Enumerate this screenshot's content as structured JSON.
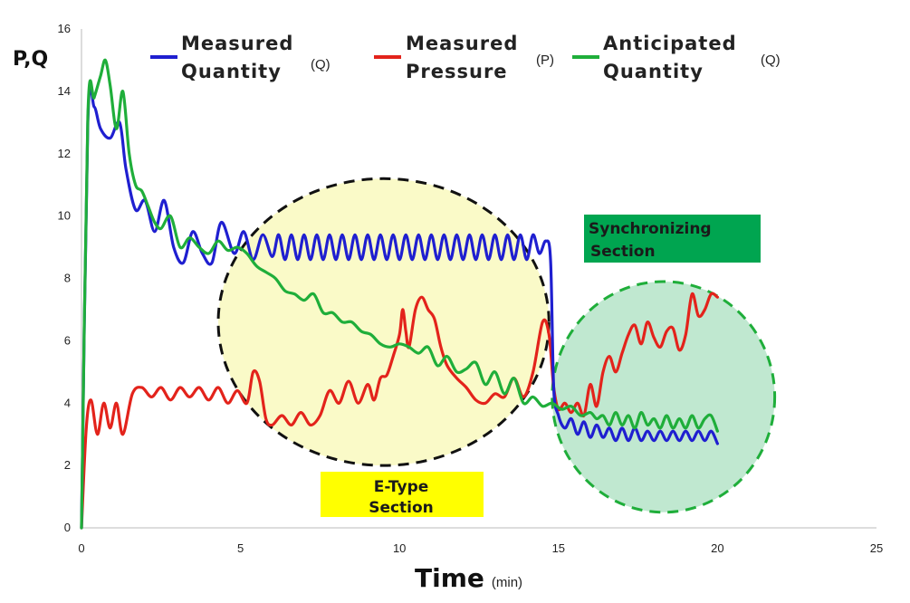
{
  "chart_data": {
    "type": "line",
    "xlabel": "Time",
    "xlabel_unit": "(min)",
    "ylabel": "P,Q",
    "xlim": [
      0,
      25
    ],
    "ylim": [
      0,
      16
    ],
    "xticks": [
      0,
      5,
      10,
      15,
      20,
      25
    ],
    "yticks": [
      0,
      2,
      4,
      6,
      8,
      10,
      12,
      14,
      16
    ],
    "legend_position": "top",
    "series": [
      {
        "name": "Measured Quantity",
        "line1": "Measured",
        "line2": "Quantity",
        "unit": "(Q)",
        "color": "#1f1fd0",
        "x": [
          0,
          0.2,
          0.4,
          0.6,
          0.9,
          1.2,
          1.4,
          1.7,
          2.0,
          2.3,
          2.6,
          2.9,
          3.2,
          3.5,
          3.8,
          4.1,
          4.4,
          4.8,
          5.1,
          5.4,
          5.7,
          6.0,
          6.2,
          6.4,
          6.6,
          6.8,
          7.0,
          7.2,
          7.4,
          7.6,
          7.8,
          8.0,
          8.2,
          8.4,
          8.6,
          8.8,
          9.0,
          9.2,
          9.4,
          9.6,
          9.8,
          10.0,
          10.2,
          10.4,
          10.6,
          10.8,
          11.0,
          11.2,
          11.4,
          11.6,
          11.8,
          12.0,
          12.2,
          12.4,
          12.6,
          12.8,
          13.0,
          13.2,
          13.4,
          13.6,
          13.8,
          14.0,
          14.2,
          14.4,
          14.6,
          14.75,
          14.85,
          15.0,
          15.2,
          15.4,
          15.6,
          15.8,
          16.0,
          16.2,
          16.4,
          16.6,
          16.8,
          17.0,
          17.2,
          17.4,
          17.6,
          17.8,
          18.0,
          18.2,
          18.4,
          18.6,
          18.8,
          19.0,
          19.2,
          19.4,
          19.6,
          19.8,
          20.0
        ],
        "values": [
          0,
          13.0,
          13.5,
          12.8,
          12.5,
          13.0,
          11.5,
          10.2,
          10.5,
          9.5,
          10.5,
          9.0,
          8.5,
          9.5,
          8.8,
          8.5,
          9.8,
          8.8,
          9.5,
          8.6,
          9.4,
          8.7,
          9.4,
          8.6,
          9.4,
          8.6,
          9.4,
          8.6,
          9.4,
          8.6,
          9.4,
          8.6,
          9.4,
          8.6,
          9.4,
          8.6,
          9.4,
          8.6,
          9.4,
          8.6,
          9.4,
          8.6,
          9.4,
          8.6,
          9.4,
          8.6,
          9.4,
          8.6,
          9.4,
          8.6,
          9.4,
          8.6,
          9.4,
          8.6,
          9.4,
          8.6,
          9.4,
          8.6,
          9.4,
          8.6,
          9.4,
          8.6,
          9.4,
          8.8,
          9.2,
          8.6,
          4.5,
          3.6,
          3.2,
          3.5,
          3.0,
          3.4,
          2.9,
          3.3,
          2.9,
          3.2,
          2.8,
          3.2,
          2.8,
          3.2,
          2.8,
          3.1,
          2.8,
          3.1,
          2.8,
          3.1,
          2.8,
          3.1,
          2.8,
          3.1,
          2.8,
          3.1,
          2.7
        ]
      },
      {
        "name": "Measured Pressure",
        "line1": "Measured",
        "line2": "Pressure",
        "unit": "(P)",
        "color": "#e3231b",
        "x": [
          0,
          0.15,
          0.3,
          0.5,
          0.7,
          0.9,
          1.1,
          1.3,
          1.6,
          1.9,
          2.2,
          2.5,
          2.8,
          3.1,
          3.4,
          3.7,
          4.0,
          4.3,
          4.6,
          4.9,
          5.2,
          5.4,
          5.6,
          5.8,
          6.0,
          6.3,
          6.6,
          6.9,
          7.2,
          7.5,
          7.8,
          8.1,
          8.4,
          8.7,
          9.0,
          9.2,
          9.4,
          9.6,
          9.8,
          10.0,
          10.1,
          10.2,
          10.3,
          10.5,
          10.7,
          10.9,
          11.1,
          11.3,
          11.5,
          11.8,
          12.1,
          12.4,
          12.7,
          13.0,
          13.3,
          13.6,
          13.9,
          14.2,
          14.5,
          14.7,
          14.85,
          15.0,
          15.2,
          15.4,
          15.6,
          15.8,
          16.0,
          16.2,
          16.4,
          16.6,
          16.8,
          17.0,
          17.2,
          17.4,
          17.6,
          17.8,
          18.0,
          18.2,
          18.4,
          18.6,
          18.8,
          19.0,
          19.2,
          19.4,
          19.6,
          19.8,
          20.0
        ],
        "values": [
          0,
          3.2,
          4.1,
          3.0,
          4.0,
          3.2,
          4.0,
          3.0,
          4.3,
          4.5,
          4.2,
          4.5,
          4.1,
          4.5,
          4.2,
          4.5,
          4.1,
          4.5,
          4.0,
          4.4,
          4.0,
          5.0,
          4.7,
          3.5,
          3.3,
          3.6,
          3.3,
          3.7,
          3.3,
          3.6,
          4.4,
          4.0,
          4.7,
          4.0,
          4.6,
          4.1,
          4.8,
          4.9,
          5.5,
          6.2,
          7.0,
          6.3,
          5.8,
          7.0,
          7.4,
          7.0,
          6.7,
          5.8,
          5.2,
          4.8,
          4.5,
          4.1,
          4.0,
          4.3,
          4.2,
          4.8,
          4.2,
          5.0,
          6.6,
          6.2,
          4.5,
          3.8,
          4.0,
          3.7,
          4.0,
          3.6,
          4.6,
          3.9,
          5.0,
          5.5,
          5.0,
          5.6,
          6.2,
          6.5,
          5.9,
          6.6,
          6.1,
          5.8,
          6.3,
          6.4,
          5.7,
          6.2,
          7.5,
          6.8,
          7.0,
          7.5,
          7.4
        ]
      },
      {
        "name": "Anticipated Quantity",
        "line1": "Anticipated",
        "line2": "Quantity",
        "unit": "(Q)",
        "color": "#1fae3a",
        "x": [
          0,
          0.2,
          0.4,
          0.6,
          0.75,
          0.9,
          1.1,
          1.3,
          1.5,
          1.7,
          1.9,
          2.1,
          2.3,
          2.5,
          2.8,
          3.1,
          3.4,
          3.7,
          4.0,
          4.3,
          4.6,
          4.9,
          5.2,
          5.5,
          5.8,
          6.1,
          6.4,
          6.7,
          7.0,
          7.3,
          7.6,
          7.9,
          8.2,
          8.5,
          8.8,
          9.1,
          9.4,
          9.7,
          10.0,
          10.3,
          10.6,
          10.9,
          11.2,
          11.5,
          11.8,
          12.1,
          12.4,
          12.7,
          13.0,
          13.3,
          13.6,
          13.9,
          14.2,
          14.5,
          14.8,
          15.1,
          15.4,
          15.7,
          16.0,
          16.2,
          16.4,
          16.6,
          16.8,
          17.0,
          17.2,
          17.4,
          17.6,
          17.8,
          18.0,
          18.2,
          18.4,
          18.6,
          18.8,
          19.0,
          19.2,
          19.4,
          19.6,
          19.8,
          20.0
        ],
        "values": [
          0,
          13.2,
          13.8,
          14.5,
          15.0,
          14.2,
          12.8,
          14.0,
          12.0,
          11.0,
          10.8,
          10.3,
          9.8,
          9.6,
          10.0,
          9.0,
          9.3,
          9.0,
          8.8,
          9.2,
          8.9,
          9.0,
          8.8,
          8.4,
          8.2,
          8.0,
          7.6,
          7.5,
          7.3,
          7.5,
          6.9,
          6.9,
          6.6,
          6.6,
          6.3,
          6.2,
          5.9,
          5.8,
          5.9,
          5.8,
          5.6,
          5.8,
          5.2,
          5.5,
          5.0,
          5.1,
          5.3,
          4.6,
          5.0,
          4.3,
          4.8,
          4.0,
          4.2,
          3.9,
          4.0,
          3.8,
          3.9,
          3.6,
          3.7,
          3.5,
          3.6,
          3.3,
          3.7,
          3.3,
          3.6,
          3.2,
          3.7,
          3.3,
          3.5,
          3.2,
          3.6,
          3.2,
          3.5,
          3.2,
          3.6,
          3.2,
          3.5,
          3.6,
          3.1
        ]
      }
    ],
    "annotations": [
      {
        "id": "e-type",
        "label_line1": "E-Type",
        "label_line2": "Section",
        "box_color": "#ffff00",
        "region_color": "#fafac8",
        "center": [
          9.5,
          6.6
        ],
        "radius_x": 5.2,
        "radius_y": 4.6
      },
      {
        "id": "sync",
        "label_line1": "Synchronizing",
        "label_line2": "Section",
        "box_color": "#00a550",
        "region_color": "#c0e8d0",
        "center": [
          18.3,
          4.2
        ],
        "radius_x": 3.5,
        "radius_y": 3.7
      }
    ]
  }
}
